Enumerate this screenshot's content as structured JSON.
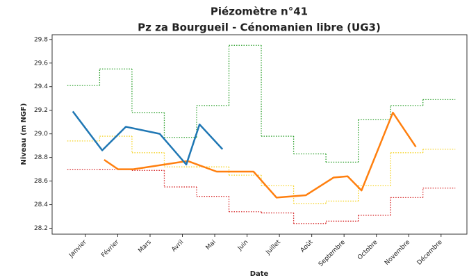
{
  "chart_data": {
    "type": "line",
    "title": "Piézomètre n°41",
    "subtitle": "Pz za Bourgueil - Cénomanien libre (UG3)",
    "x_label": "Date",
    "y_label": "Niveau (m NGF)",
    "xlim": [
      -0.03,
      12.8
    ],
    "ylim": [
      28.15,
      29.84
    ],
    "xticks": [
      {
        "value": 1,
        "label": "Janvier"
      },
      {
        "value": 2,
        "label": "Février"
      },
      {
        "value": 3,
        "label": "Mars"
      },
      {
        "value": 4,
        "label": "Avril"
      },
      {
        "value": 5,
        "label": "Mai"
      },
      {
        "value": 6,
        "label": "Juin"
      },
      {
        "value": 7,
        "label": "Juillet"
      },
      {
        "value": 8,
        "label": "Août"
      },
      {
        "value": 9,
        "label": "Septembre"
      },
      {
        "value": 10,
        "label": "Octobre"
      },
      {
        "value": 11,
        "label": "Novembre"
      },
      {
        "value": 12,
        "label": "Décembre"
      }
    ],
    "yticks": [
      28.2,
      28.4,
      28.6,
      28.8,
      {
        "value": 29.0,
        "label": "29.0"
      },
      29.2,
      29.4,
      29.6,
      29.8
    ],
    "series": [
      {
        "color": "#2ca02c",
        "style": "step",
        "x": [
          0.44,
          1.44,
          2.44,
          3.44,
          4.44,
          5.44,
          6.44,
          7.44,
          8.44,
          9.44,
          10.44,
          11.44
        ],
        "values": [
          29.41,
          29.55,
          29.18,
          28.97,
          29.24,
          29.75,
          28.98,
          28.83,
          28.76,
          29.12,
          29.24,
          29.29
        ]
      },
      {
        "color": "#f5d327",
        "style": "step",
        "x": [
          0.44,
          1.44,
          2.44,
          3.44,
          4.44,
          5.44,
          6.44,
          7.44,
          8.44,
          9.44,
          10.44,
          11.44
        ],
        "values": [
          28.94,
          28.98,
          28.84,
          28.72,
          28.72,
          28.65,
          28.56,
          28.41,
          28.43,
          28.56,
          28.84,
          28.87
        ]
      },
      {
        "color": "#d62728",
        "style": "step",
        "x": [
          0.44,
          1.44,
          2.44,
          3.44,
          4.44,
          5.44,
          6.44,
          7.44,
          8.44,
          9.44,
          10.44,
          11.44
        ],
        "values": [
          28.7,
          28.7,
          28.69,
          28.55,
          28.47,
          28.34,
          28.33,
          28.24,
          28.26,
          28.31,
          28.46,
          28.54
        ]
      },
      {
        "color": "#ff7f0e",
        "style": "line",
        "x": [
          1.58,
          2.01,
          2.48,
          4.16,
          5.06,
          6.2,
          6.91,
          7.82,
          8.68,
          9.11,
          9.54,
          10.51,
          11.22
        ],
        "values": [
          28.78,
          28.7,
          28.7,
          28.77,
          28.68,
          28.68,
          28.46,
          28.48,
          28.63,
          28.64,
          28.52,
          29.18,
          28.89
        ]
      },
      {
        "color": "#1f77b4",
        "style": "line",
        "x": [
          0.61,
          1.52,
          2.25,
          3.3,
          4.12,
          4.53,
          5.24
        ],
        "values": [
          29.19,
          28.86,
          29.06,
          29.0,
          28.74,
          29.08,
          28.87
        ]
      }
    ]
  }
}
